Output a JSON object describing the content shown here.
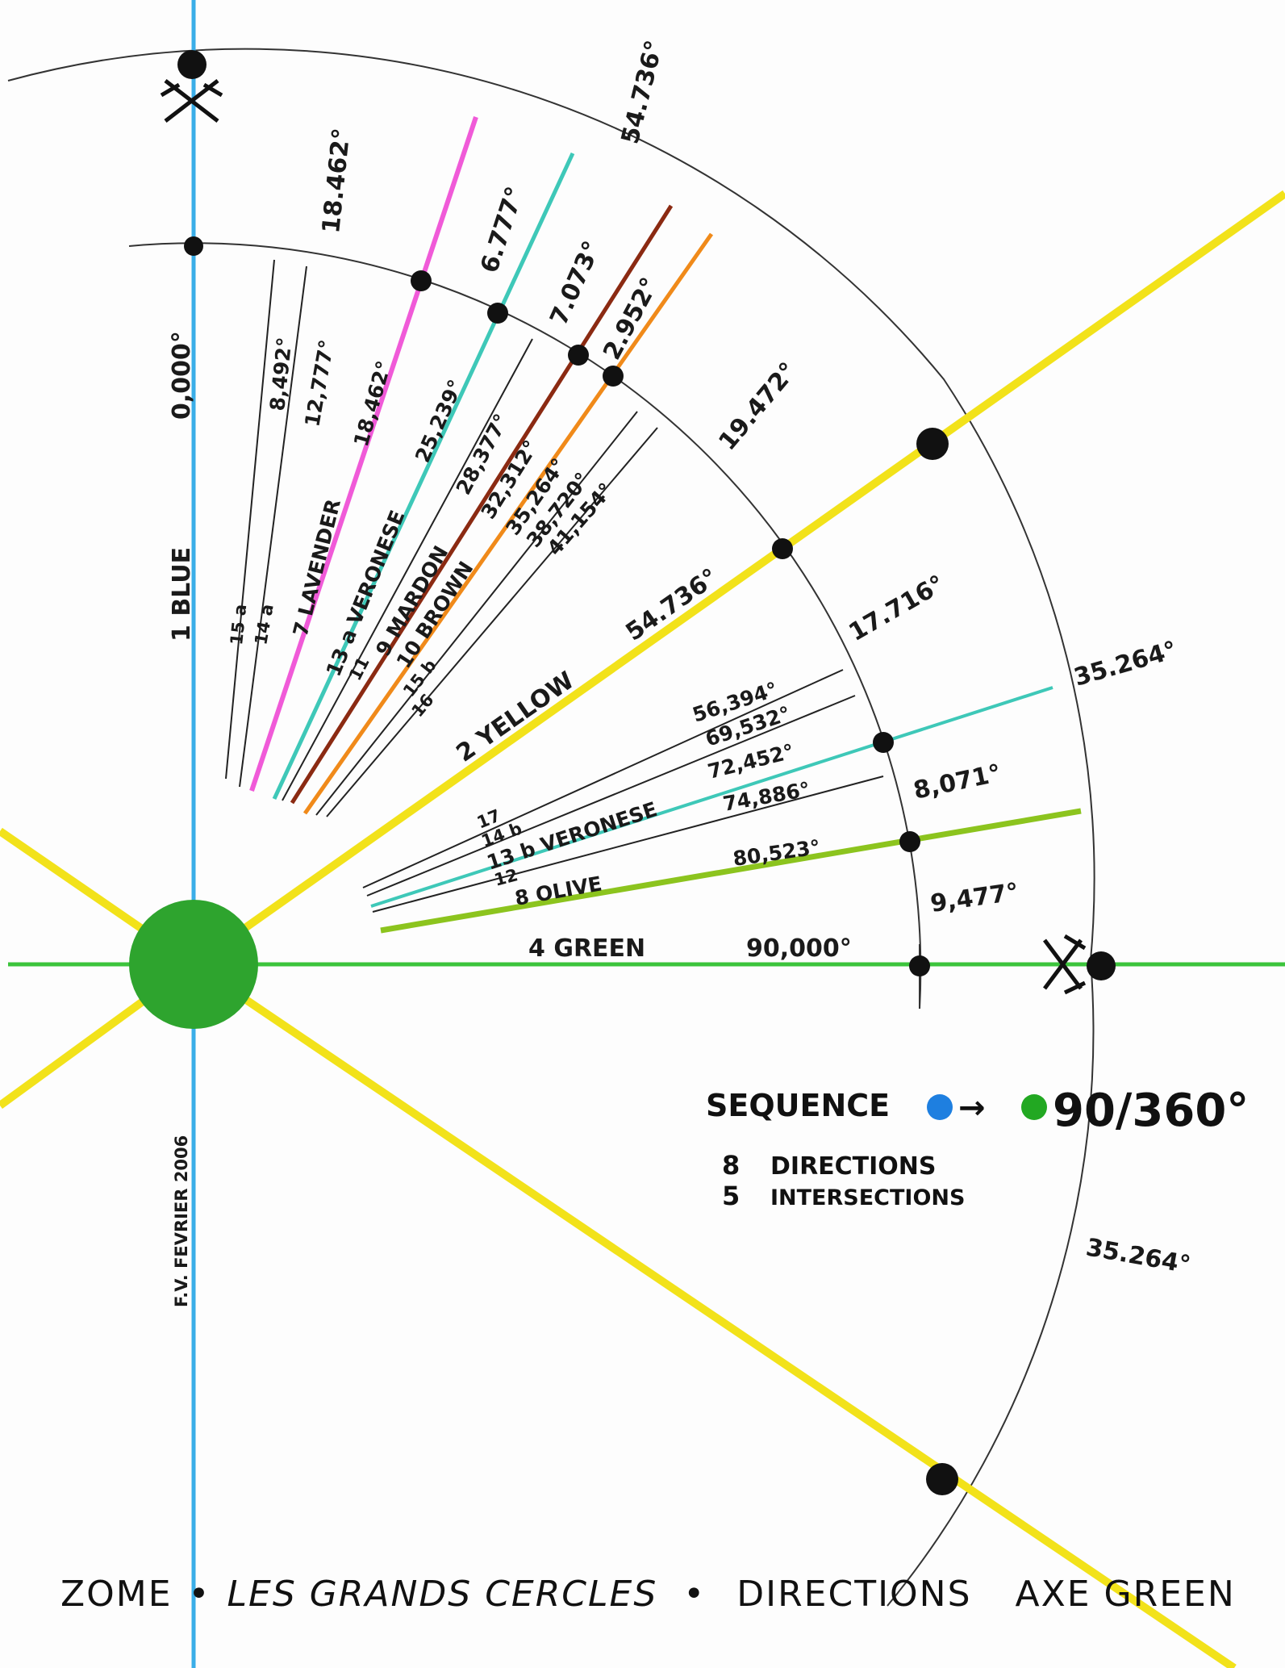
{
  "title": {
    "part1": "ZOME",
    "sep1": "•",
    "part2": "LES GRANDS CERCLES",
    "sep2": "•",
    "part3": "DIRECTIONS",
    "part4": "AXE GREEN"
  },
  "signature": "F.V. FEVRIER 2006",
  "sequence": {
    "label": "SEQUENCE",
    "arrow": "→",
    "value": "90/360°",
    "line1_num": "8",
    "line1_text": "DIRECTIONS",
    "line2_num": "5",
    "line2_text": "INTERSECTIONS",
    "from_color": "#1e7fe0",
    "to_color": "#22a822"
  },
  "colors": {
    "blue": "#3aaee8",
    "yellow": "#f2e21a",
    "green": "#3cc43c",
    "lavender": "#f05ad8",
    "veronese": "#3ec8b8",
    "maroon": "#8b2a12",
    "brown": "#f08a1a",
    "olive": "#8cc41e",
    "hub": "#2ea42e"
  },
  "axes": {
    "blue_label": "1 BLUE",
    "blue_angle": "0,000°",
    "green_label": "4 GREEN",
    "green_angle": "90,000°",
    "yellow_label": "2 YELLOW",
    "yellow_angle": "54.736°"
  },
  "upper_fan": {
    "labels": [
      "15 a",
      "14 a",
      "7 LAVENDER",
      "13 a VERONESE",
      "11",
      "9 MARDON",
      "10 BROWN",
      "15 b",
      "16"
    ],
    "angles": [
      "8,492°",
      "12,777°",
      "18,462°",
      "25,239°",
      "28,377°",
      "32,312°",
      "35,264°",
      "38,720°",
      "41,154°"
    ]
  },
  "lower_fan": {
    "labels": [
      "17",
      "14 b",
      "13 b VERONESE",
      "12",
      "8 OLIVE"
    ],
    "angles": [
      "56,394°",
      "69,532°",
      "72,452°",
      "74,886°",
      "80,523°"
    ]
  },
  "arc_labels": {
    "outer_top": "54.736°",
    "segment_a": "18.462°",
    "segment_b": "6.777°",
    "segment_c": "7.073°",
    "segment_d": "2.952°",
    "segment_e": "19.472°",
    "segment_f": "17.716°",
    "segment_g": "8,071°",
    "segment_h": "9,477°",
    "outer_right": "35.264°",
    "outer_lower": "35.264°"
  }
}
